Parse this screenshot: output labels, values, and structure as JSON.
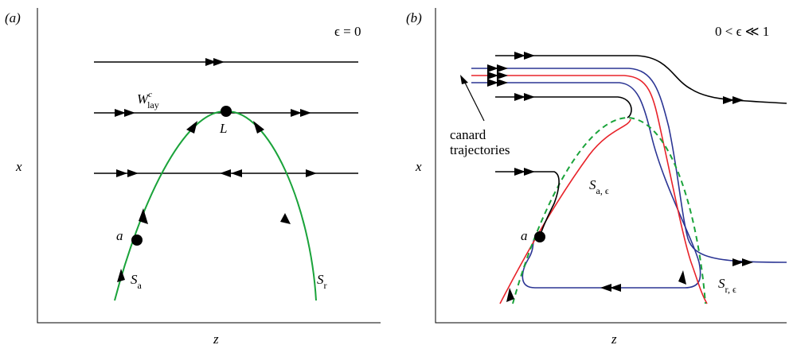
{
  "panels": {
    "a": {
      "tag": "(a)",
      "param": "ϵ = 0",
      "xlabel": "z",
      "ylabel": "x",
      "labels": {
        "W": "W",
        "W_sup": "c",
        "W_sub": "lay",
        "L": "L",
        "a": "a",
        "S_a": "S",
        "S_a_sub": "a",
        "S_r": "S",
        "S_r_sub": "r"
      }
    },
    "b": {
      "tag": "(b)",
      "param": "0 < ϵ ≪ 1",
      "xlabel": "z",
      "ylabel": "x",
      "labels": {
        "canard_1": "canard",
        "canard_2": "trajectories",
        "a": "a",
        "S_ae": "S",
        "S_ae_sub": "a, ϵ",
        "S_re": "S",
        "S_re_sub": "r, ϵ"
      }
    }
  },
  "colors": {
    "critical_manifold": "#1aa33a",
    "slow_manifold": "#e8232a",
    "canard": "#2b3594",
    "trajectory": "#000000"
  }
}
